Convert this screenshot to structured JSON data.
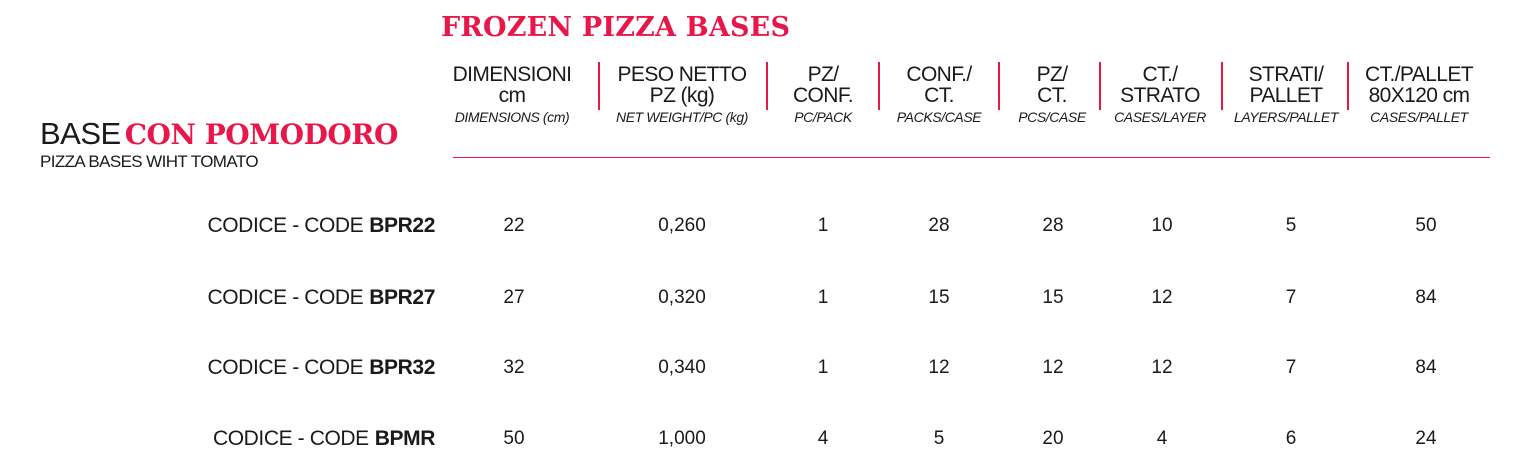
{
  "title": "FROZEN PIZZA BASES",
  "product": {
    "prefix": "BASE",
    "highlight": "CON POMODORO",
    "subtitle": "PIZZA BASES WIHT TOMATO"
  },
  "columns": [
    {
      "it1": "DIMENSIONI",
      "it2": "cm",
      "en": "DIMENSIONS (cm)"
    },
    {
      "it1": "PESO NETTO",
      "it2": "PZ (kg)",
      "en": "NET WEIGHT/PC (kg)"
    },
    {
      "it1": "PZ/",
      "it2": "CONF.",
      "en": "PC/PACK"
    },
    {
      "it1": "CONF./",
      "it2": "CT.",
      "en": "PACKS/CASE"
    },
    {
      "it1": "PZ/",
      "it2": "CT.",
      "en": "PCS/CASE"
    },
    {
      "it1": "CT./",
      "it2": "STRATO",
      "en": "CASES/LAYER"
    },
    {
      "it1": "STRATI/",
      "it2": "PALLET",
      "en": "LAYERS/PALLET"
    },
    {
      "it1": "CT./PALLET",
      "it2": "80X120 cm",
      "en": "CASES/PALLET"
    }
  ],
  "code_label": "CODICE - CODE",
  "rows": [
    {
      "code": "BPR22",
      "values": [
        "22",
        "0,260",
        "1",
        "28",
        "28",
        "10",
        "5",
        "50"
      ]
    },
    {
      "code": "BPR27",
      "values": [
        "27",
        "0,320",
        "1",
        "15",
        "15",
        "12",
        "7",
        "84"
      ]
    },
    {
      "code": "BPR32",
      "values": [
        "32",
        "0,340",
        "1",
        "12",
        "12",
        "12",
        "7",
        "84"
      ]
    },
    {
      "code": "BPMR",
      "values": [
        "50",
        "1,000",
        "4",
        "5",
        "20",
        "4",
        "6",
        "24"
      ]
    }
  ],
  "colors": {
    "accent": "#e8174a",
    "text": "#1a1a1a"
  }
}
